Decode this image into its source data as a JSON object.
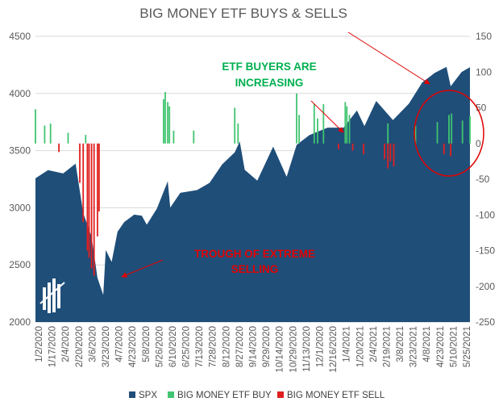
{
  "chart_data": {
    "type": "area",
    "title": "BIG MONEY ETF BUYS & SELLS",
    "x_tick_labels": [
      "1/2/2020",
      "1/17/2020",
      "2/4/2020",
      "2/20/2020",
      "3/6/2020",
      "3/23/2020",
      "4/7/2020",
      "4/23/2020",
      "5/8/2020",
      "5/26/2020",
      "6/10/2020",
      "6/25/2020",
      "7/13/2020",
      "7/28/2020",
      "8/12/2020",
      "8/27/2020",
      "9/14/2020",
      "9/29/2020",
      "10/14/2020",
      "10/29/2020",
      "11/13/2020",
      "12/1/2020",
      "12/16/2020",
      "1/4/2021",
      "1/20/2021",
      "2/4/2021",
      "2/19/2021",
      "3/8/2021",
      "3/23/2021",
      "4/8/2021",
      "4/23/2021",
      "5/10/2021",
      "5/25/2021"
    ],
    "y_left": {
      "min": 2000,
      "max": 4500,
      "ticks": [
        2000,
        2500,
        3000,
        3500,
        4000,
        4500
      ]
    },
    "y_right": {
      "min": -250,
      "max": 150,
      "ticks": [
        -250,
        -200,
        -150,
        -100,
        -50,
        0,
        50,
        100,
        150
      ]
    },
    "series": [
      {
        "name": "SPX",
        "type": "area",
        "axis": "left",
        "color": "#1f4e79",
        "points": [
          [
            "1/2/2020",
            3258
          ],
          [
            "1/17/2020",
            3330
          ],
          [
            "2/4/2020",
            3300
          ],
          [
            "2/19/2020",
            3386
          ],
          [
            "2/28/2020",
            2954
          ],
          [
            "3/9/2020",
            2746
          ],
          [
            "3/16/2020",
            2386
          ],
          [
            "3/23/2020",
            2237
          ],
          [
            "3/26/2020",
            2630
          ],
          [
            "4/2/2020",
            2526
          ],
          [
            "4/9/2020",
            2790
          ],
          [
            "4/17/2020",
            2875
          ],
          [
            "4/29/2020",
            2940
          ],
          [
            "5/8/2020",
            2930
          ],
          [
            "5/14/2020",
            2852
          ],
          [
            "5/26/2020",
            2992
          ],
          [
            "6/8/2020",
            3232
          ],
          [
            "6/11/2020",
            3002
          ],
          [
            "6/23/2020",
            3131
          ],
          [
            "7/13/2020",
            3155
          ],
          [
            "7/28/2020",
            3218
          ],
          [
            "8/12/2020",
            3380
          ],
          [
            "8/27/2020",
            3485
          ],
          [
            "9/2/2020",
            3580
          ],
          [
            "9/8/2020",
            3332
          ],
          [
            "9/23/2020",
            3237
          ],
          [
            "10/12/2020",
            3535
          ],
          [
            "10/28/2020",
            3271
          ],
          [
            "11/9/2020",
            3550
          ],
          [
            "11/24/2020",
            3635
          ],
          [
            "12/16/2020",
            3701
          ],
          [
            "1/4/2021",
            3700
          ],
          [
            "1/20/2021",
            3851
          ],
          [
            "1/29/2021",
            3714
          ],
          [
            "2/12/2021",
            3934
          ],
          [
            "3/4/2021",
            3768
          ],
          [
            "3/23/2021",
            3910
          ],
          [
            "4/8/2021",
            4097
          ],
          [
            "4/23/2021",
            4180
          ],
          [
            "5/7/2021",
            4232
          ],
          [
            "5/12/2021",
            4063
          ],
          [
            "5/25/2021",
            4188
          ],
          [
            "6/4/2021",
            4230
          ]
        ]
      },
      {
        "name": "BIG MONEY ETF BUY",
        "type": "bar",
        "axis": "right",
        "color": "#41c470",
        "spikes": [
          [
            "1/2/2020",
            48
          ],
          [
            "1/13/2020",
            25
          ],
          [
            "1/20/2020",
            28
          ],
          [
            "2/10/2020",
            15
          ],
          [
            "3/2/2020",
            12
          ],
          [
            "6/3/2020",
            62
          ],
          [
            "6/5/2020",
            72
          ],
          [
            "6/8/2020",
            58
          ],
          [
            "6/10/2020",
            52
          ],
          [
            "6/15/2020",
            18
          ],
          [
            "7/9/2020",
            18
          ],
          [
            "8/27/2020",
            50
          ],
          [
            "8/31/2020",
            28
          ],
          [
            "11/9/2020",
            70
          ],
          [
            "11/12/2020",
            40
          ],
          [
            "11/30/2020",
            55
          ],
          [
            "12/4/2020",
            35
          ],
          [
            "12/11/2020",
            55
          ],
          [
            "1/6/2021",
            58
          ],
          [
            "1/8/2021",
            52
          ],
          [
            "1/11/2021",
            40
          ],
          [
            "2/26/2021",
            28
          ],
          [
            "3/31/2021",
            25
          ],
          [
            "4/26/2021",
            30
          ],
          [
            "5/10/2021",
            40
          ],
          [
            "5/13/2021",
            42
          ],
          [
            "5/26/2021",
            32
          ],
          [
            "6/4/2021",
            38
          ]
        ]
      },
      {
        "name": "BIG MONEY ETF SELL",
        "type": "bar",
        "axis": "right",
        "color": "#e02020",
        "spikes": [
          [
            "1/30/2020",
            -12
          ],
          [
            "2/24/2020",
            -55
          ],
          [
            "2/28/2020",
            -110
          ],
          [
            "3/4/2020",
            -150
          ],
          [
            "3/6/2020",
            -160
          ],
          [
            "3/9/2020",
            -175
          ],
          [
            "3/12/2020",
            -185
          ],
          [
            "3/16/2020",
            -130
          ],
          [
            "3/18/2020",
            -95
          ],
          [
            "12/29/2020",
            -8
          ],
          [
            "1/15/2021",
            -10
          ],
          [
            "1/28/2021",
            -15
          ],
          [
            "2/22/2021",
            -22
          ],
          [
            "2/26/2021",
            -35
          ],
          [
            "3/1/2021",
            -25
          ],
          [
            "3/5/2021",
            -32
          ],
          [
            "5/4/2021",
            -15
          ],
          [
            "5/12/2021",
            -18
          ]
        ]
      }
    ],
    "annotations": [
      {
        "text": "ETF BUYERS ARE",
        "color": "#00b050"
      },
      {
        "text": "INCREASING",
        "color": "#00b050"
      },
      {
        "text": "TROUGH OF EXTREME",
        "color": "#e00000"
      },
      {
        "text": "SELLING",
        "color": "#e00000"
      }
    ],
    "legend": {
      "placement": "bottom"
    }
  }
}
